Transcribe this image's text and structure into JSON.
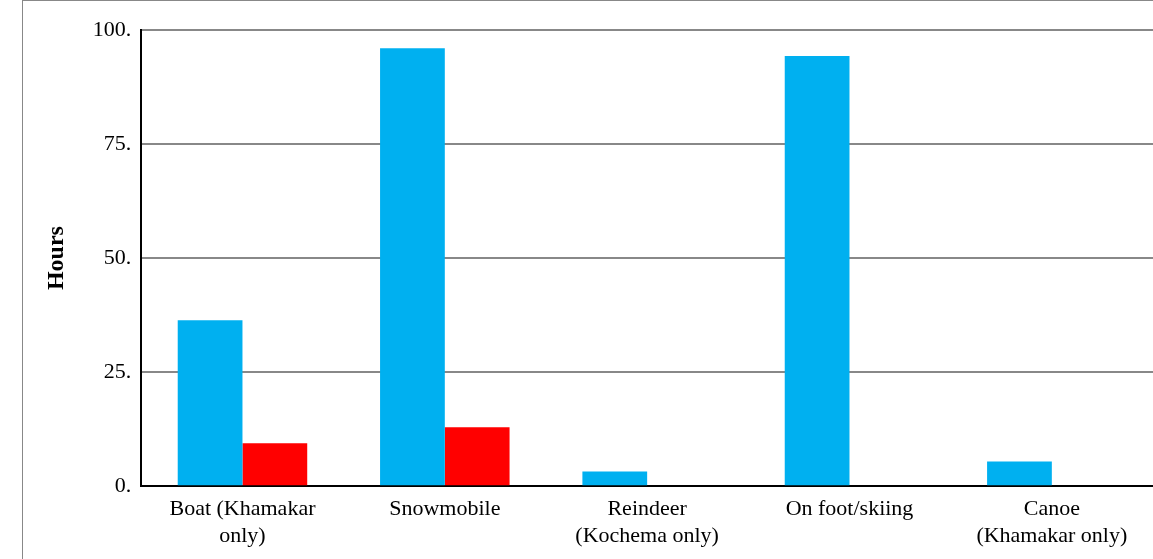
{
  "chart_data": {
    "type": "bar",
    "ylabel": "Hours",
    "categories": [
      "Boat (Khamakar only)",
      "Snowmobile",
      "Reindeer (Kochema only)",
      "On foot/skiing",
      "Canoe (Khamakar only)"
    ],
    "series": [
      {
        "color": "#00b0f0",
        "values": [
          36.4,
          96.0,
          3.2,
          94.3,
          5.4
        ]
      },
      {
        "color": "#ff0000",
        "values": [
          9.4,
          12.9,
          0,
          null,
          0
        ]
      }
    ],
    "ylim": [
      0,
      100
    ],
    "yticks": [
      {
        "value": 0,
        "label": "0."
      },
      {
        "value": 25,
        "label": "25."
      },
      {
        "value": 50,
        "label": "50."
      },
      {
        "value": 75,
        "label": "75."
      },
      {
        "value": 100,
        "label": "100."
      }
    ],
    "grid": "y",
    "legend": false
  }
}
